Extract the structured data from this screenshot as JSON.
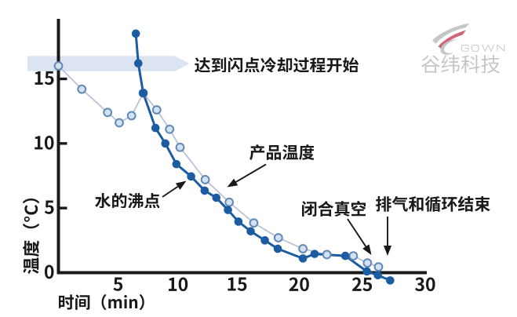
{
  "page": {
    "background": "#ffffff"
  },
  "logo": {
    "brand": "GOWN",
    "company": "谷纬科技"
  },
  "chart_data": {
    "type": "line",
    "title": "",
    "xlabel": "时间（min）",
    "ylabel": "温度（°C）",
    "xlim": [
      0,
      30
    ],
    "ylim": [
      -1,
      19.5
    ],
    "xticks": [
      5,
      10,
      15,
      20,
      25,
      30
    ],
    "yticks": [
      0,
      5,
      10,
      15
    ],
    "grid": false,
    "legend": false,
    "series": [
      {
        "name": "水的沸点",
        "marker": "filled-circle",
        "color": "#1c5ca3",
        "points": [
          [
            6.3,
            18.5
          ],
          [
            6.5,
            16.2
          ],
          [
            6.9,
            13.9
          ],
          [
            7.9,
            11.2
          ],
          [
            8.7,
            10.0
          ],
          [
            9.6,
            8.4
          ],
          [
            10.8,
            7.45
          ],
          [
            11.9,
            6.35
          ],
          [
            12.85,
            5.8
          ],
          [
            13.8,
            4.85
          ],
          [
            14.65,
            3.95
          ],
          [
            15.65,
            3.2
          ],
          [
            16.8,
            2.5
          ],
          [
            17.85,
            1.85
          ],
          [
            19.9,
            1.1
          ],
          [
            20.85,
            1.45
          ],
          [
            23.35,
            1.3
          ],
          [
            25.1,
            0.1
          ],
          [
            26.0,
            -0.2
          ],
          [
            27.0,
            -0.6
          ]
        ]
      },
      {
        "name": "产品温度",
        "marker": "open-circle",
        "color": "#d3e1f1",
        "ring_color": "#6288b5",
        "line_color": "#b8c3d7",
        "points": [
          [
            0,
            16.0
          ],
          [
            1.9,
            14.2
          ],
          [
            4.0,
            12.4
          ],
          [
            4.95,
            11.6
          ],
          [
            5.95,
            12.15
          ],
          [
            6.9,
            13.9
          ],
          [
            8.0,
            12.6
          ],
          [
            9.05,
            11.1
          ],
          [
            9.9,
            9.7
          ],
          [
            11.95,
            7.2
          ],
          [
            13.9,
            5.45
          ],
          [
            15.9,
            3.85
          ],
          [
            17.9,
            2.7
          ],
          [
            19.9,
            1.85
          ],
          [
            21.85,
            1.4
          ],
          [
            24.0,
            1.3
          ],
          [
            25.15,
            0.75
          ],
          [
            26.05,
            0.45
          ]
        ]
      }
    ],
    "annotations": [
      {
        "id": "flashpoint-band",
        "text": "达到闪点冷却过程开始",
        "shape": "band-arrow",
        "band_color": "#dce3f1"
      },
      {
        "id": "product-temperature",
        "text": "产品温度",
        "shape": "arrow",
        "points_to": "产品温度"
      },
      {
        "id": "water-boiling-point",
        "text": "水的沸点",
        "shape": "arrow",
        "points_to": "水的沸点"
      },
      {
        "id": "close-vacuum",
        "text": "闭合真空",
        "shape": "arrow"
      },
      {
        "id": "vent-cycle-end",
        "text": "排气和循环结束",
        "shape": "arrow"
      }
    ]
  },
  "colors": {
    "axis": "#191919",
    "text": "#191919",
    "band": "#dce3f1",
    "dark_series": "#1c5ca3",
    "light_series_fill": "#d3e1f1",
    "light_series_ring": "#6288b5",
    "light_series_line": "#b8c3d7",
    "logo_gray": "#c4c7c9",
    "logo_red": "#d06774"
  }
}
